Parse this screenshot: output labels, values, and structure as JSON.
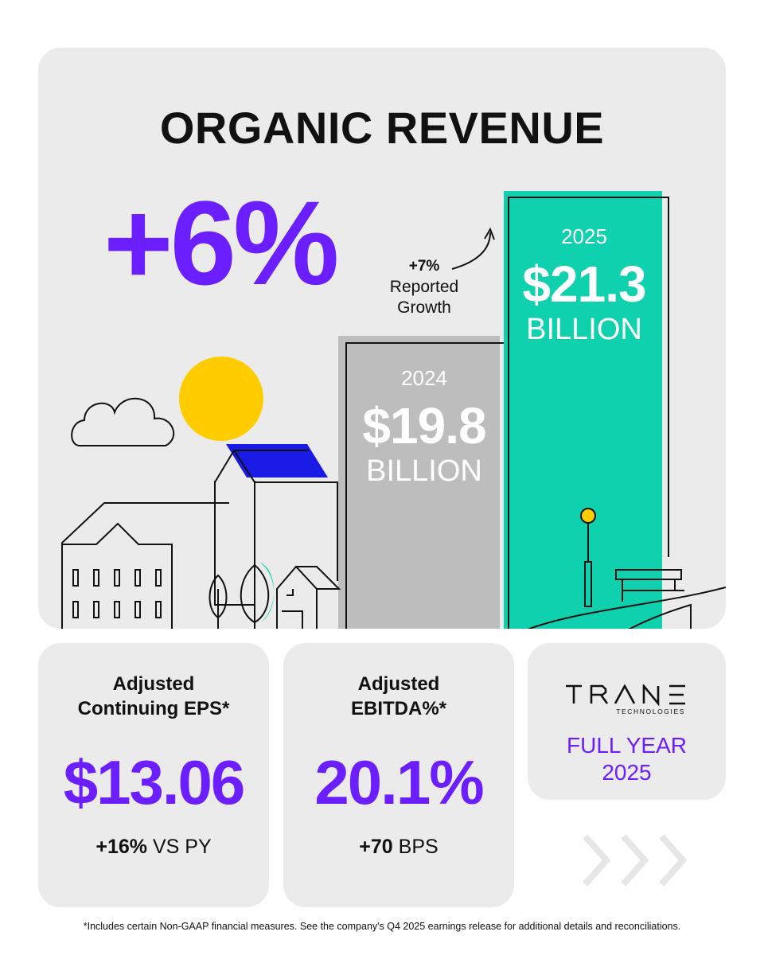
{
  "main": {
    "title": "ORGANIC REVENUE",
    "organic_growth": "+6%",
    "reported_growth": {
      "value": "+7%",
      "label_line1": "Reported",
      "label_line2": "Growth"
    },
    "bars": [
      {
        "year": "2024",
        "amount": "$19.8",
        "unit": "BILLION"
      },
      {
        "year": "2025",
        "amount": "$21.3",
        "unit": "BILLION"
      }
    ],
    "colors": {
      "accent": "#6b1fff",
      "teal": "#10d1ad",
      "gray_bar": "#bdbdbd",
      "sun": "#ffcc00",
      "solar": "#1a1ae6"
    }
  },
  "stats": {
    "eps": {
      "label_line1": "Adjusted",
      "label_line2": "Continuing EPS*",
      "value": "$13.06",
      "delta_bold": "+16%",
      "delta_rest": "VS PY"
    },
    "ebitda": {
      "label_line1": "Adjusted",
      "label_line2": "EBITDA%*",
      "value": "20.1%",
      "delta_bold": "+70",
      "delta_rest": "BPS"
    }
  },
  "brand": {
    "name": "TRANE",
    "subtitle": "TECHNOLOGIES",
    "period_line1": "FULL YEAR",
    "period_line2": "2025"
  },
  "footnote": "*Includes certain Non-GAAP financial measures. See the company's Q4 2025 earnings release for additional details and reconciliations."
}
